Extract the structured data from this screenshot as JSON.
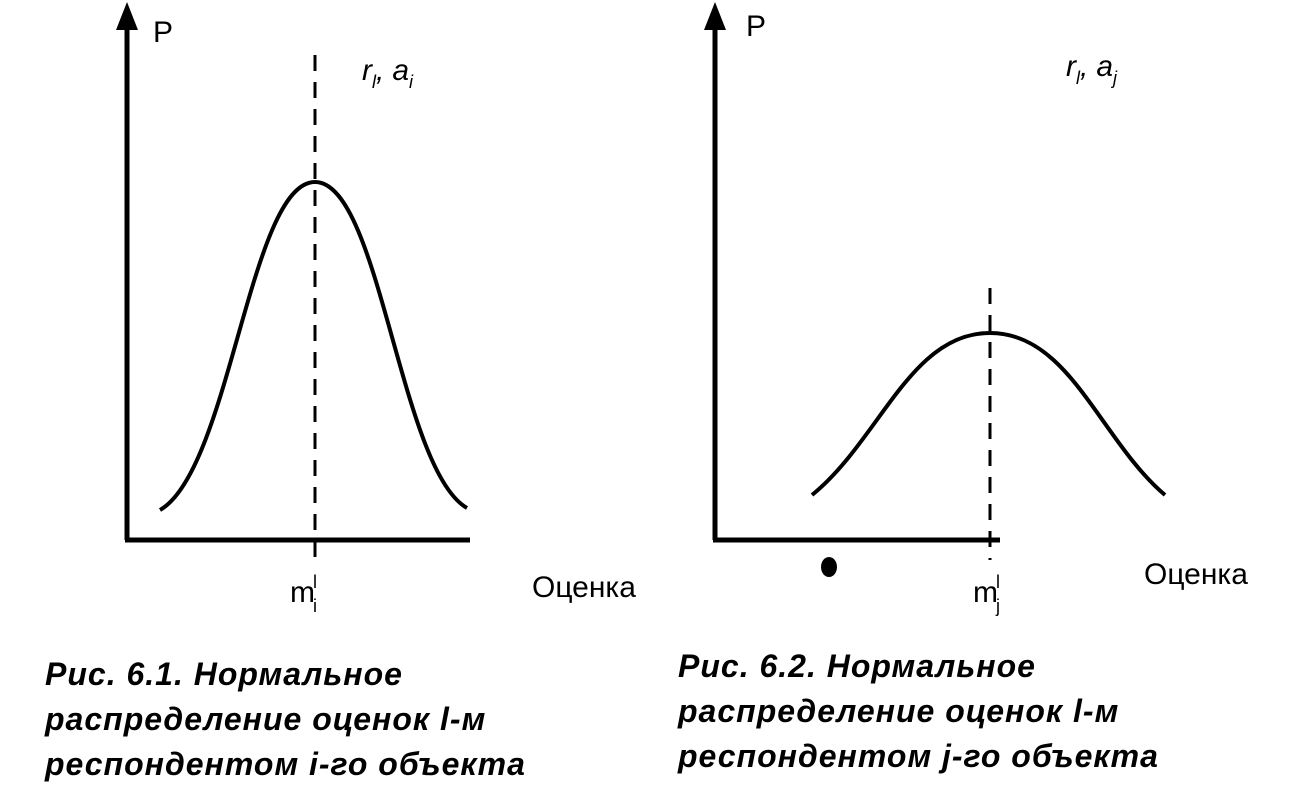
{
  "figures": [
    {
      "axis_y_label": "P",
      "params": [
        {
          "base": "r",
          "sub": "l"
        },
        {
          "base": "a",
          "sub": "i"
        }
      ],
      "params_separator": ",",
      "mean_label": {
        "base": "m",
        "sub": "i",
        "sup": "l"
      },
      "x_axis_label": "Оценка",
      "caption": [
        "Рис. 6.1. Нормальное",
        "распределение оценок l-м",
        "респондентом i-го объекта"
      ]
    },
    {
      "axis_y_label": "P",
      "params": [
        {
          "base": "r",
          "sub": "l"
        },
        {
          "base": "a",
          "sub": "j"
        }
      ],
      "params_separator": ",",
      "mean_label": {
        "base": "m",
        "sub": "j",
        "sup": "l"
      },
      "x_axis_label": "Оценка",
      "caption": [
        "Рис. 6.2. Нормальное",
        "распределение оценок l-м",
        "респондентом j-го объекта"
      ]
    }
  ]
}
